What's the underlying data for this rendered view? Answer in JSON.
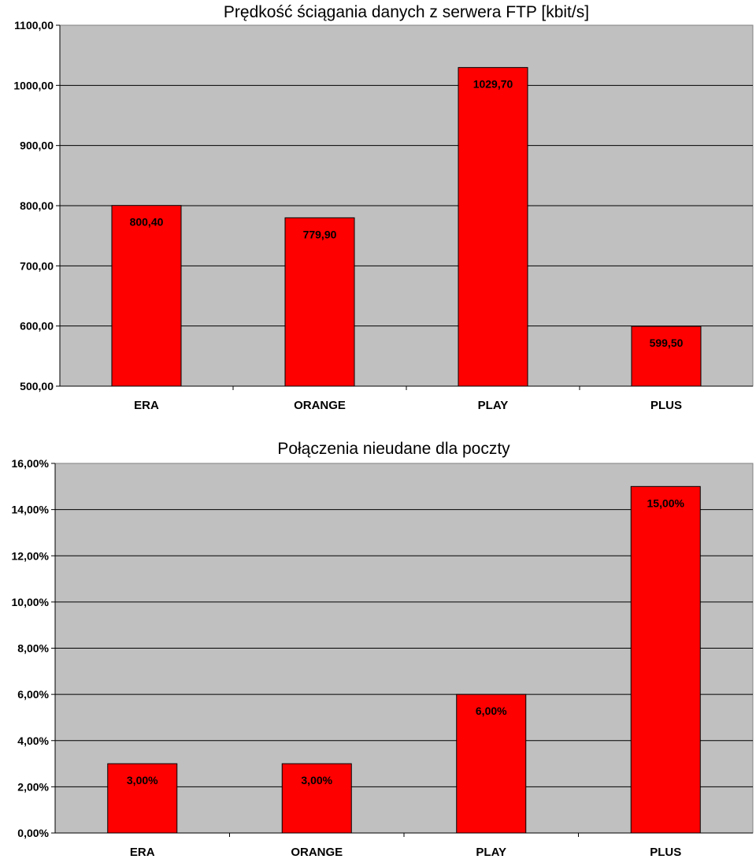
{
  "chart_data": [
    {
      "type": "bar",
      "title": "Prędkość ściągania danych z serwera FTP [kbit/s]",
      "xlabel": "",
      "ylabel": "",
      "categories": [
        "ERA",
        "ORANGE",
        "PLAY",
        "PLUS"
      ],
      "values": [
        800.4,
        779.9,
        1029.7,
        599.5
      ],
      "value_labels": [
        "800,40",
        "779,90",
        "1029,70",
        "599,50"
      ],
      "ylim": [
        500,
        1100
      ],
      "yticks": [
        500,
        600,
        700,
        800,
        900,
        1000,
        1100
      ],
      "ytick_labels": [
        "500,00",
        "600,00",
        "700,00",
        "800,00",
        "900,00",
        "1000,00",
        "1100,00"
      ],
      "grid": true,
      "legend": "none",
      "colors": {
        "bar": "#ff0000",
        "plot_bg": "#c0c0c0",
        "grid": "#000000"
      }
    },
    {
      "type": "bar",
      "title": "Połączenia nieudane dla poczty",
      "xlabel": "",
      "ylabel": "",
      "categories": [
        "ERA",
        "ORANGE",
        "PLAY",
        "PLUS"
      ],
      "values": [
        3.0,
        3.0,
        6.0,
        15.0
      ],
      "value_labels": [
        "3,00%",
        "3,00%",
        "6,00%",
        "15,00%"
      ],
      "ylim": [
        0,
        16
      ],
      "yticks": [
        0,
        2,
        4,
        6,
        8,
        10,
        12,
        14,
        16
      ],
      "ytick_labels": [
        "0,00%",
        "2,00%",
        "4,00%",
        "6,00%",
        "8,00%",
        "10,00%",
        "12,00%",
        "14,00%",
        "16,00%"
      ],
      "grid": true,
      "legend": "none",
      "colors": {
        "bar": "#ff0000",
        "plot_bg": "#c0c0c0",
        "grid": "#000000"
      }
    }
  ]
}
